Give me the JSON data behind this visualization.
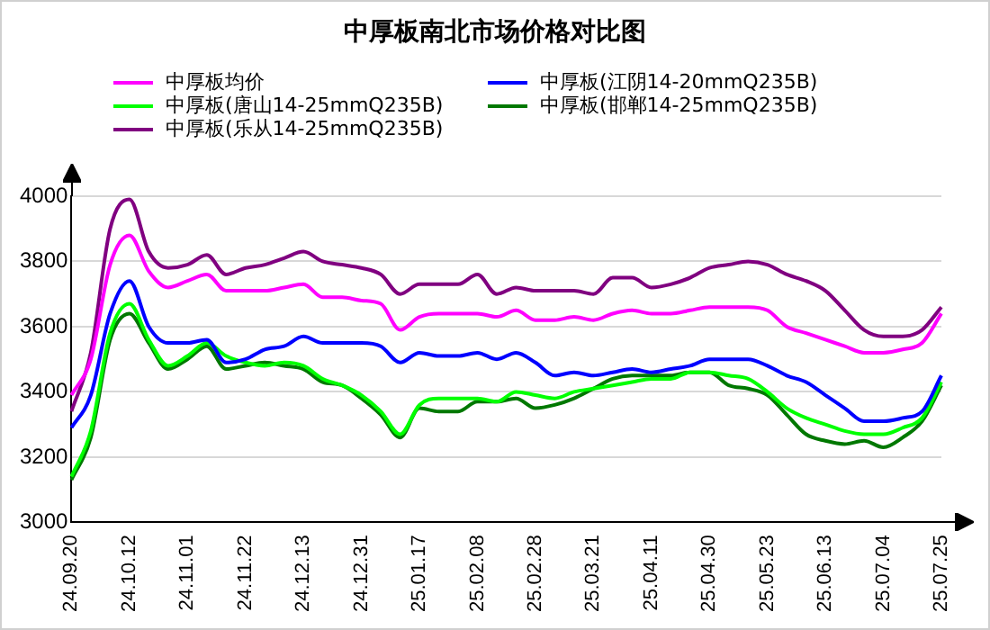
{
  "chart_data": {
    "type": "line",
    "title": "中厚板南北市场价格对比图",
    "categories": [
      "24.09.20",
      null,
      null,
      "24.10.12",
      null,
      null,
      "24.11.01",
      null,
      null,
      "24.11.22",
      null,
      null,
      "24.12.13",
      null,
      null,
      "24.12.31",
      null,
      null,
      "25.01.17",
      null,
      null,
      "25.02.08",
      null,
      null,
      "25.02.28",
      null,
      null,
      "25.03.21",
      null,
      null,
      "25.04.11",
      null,
      null,
      "25.04.30",
      null,
      null,
      "25.05.23",
      null,
      null,
      "25.06.13",
      null,
      null,
      "25.07.04",
      null,
      null,
      "25.07.25"
    ],
    "series": [
      {
        "name": "中厚板均价",
        "color": "#ff00ff",
        "values": [
          3390,
          3500,
          3790,
          3880,
          3770,
          3720,
          3740,
          3760,
          3710,
          3710,
          3710,
          3720,
          3730,
          3690,
          3690,
          3680,
          3670,
          3590,
          3630,
          3640,
          3640,
          3640,
          3630,
          3650,
          3620,
          3620,
          3630,
          3620,
          3640,
          3650,
          3640,
          3640,
          3650,
          3660,
          3660,
          3660,
          3650,
          3600,
          3580,
          3560,
          3540,
          3520,
          3520,
          3530,
          3550,
          3640
        ]
      },
      {
        "name": "中厚板(江阴14-20mmQ235B)",
        "color": "#0000ff",
        "values": [
          3290,
          3390,
          3640,
          3740,
          3600,
          3550,
          3550,
          3560,
          3490,
          3500,
          3530,
          3540,
          3570,
          3550,
          3550,
          3550,
          3540,
          3490,
          3520,
          3510,
          3510,
          3520,
          3500,
          3520,
          3490,
          3450,
          3460,
          3450,
          3460,
          3470,
          3460,
          3470,
          3480,
          3500,
          3500,
          3500,
          3480,
          3450,
          3430,
          3390,
          3350,
          3310,
          3310,
          3320,
          3340,
          3450
        ]
      },
      {
        "name": "中厚板(唐山14-25mmQ235B)",
        "color": "#00ff00",
        "values": [
          3140,
          3280,
          3580,
          3670,
          3560,
          3480,
          3510,
          3550,
          3510,
          3490,
          3480,
          3490,
          3480,
          3440,
          3420,
          3390,
          3340,
          3270,
          3360,
          3380,
          3380,
          3380,
          3370,
          3400,
          3390,
          3380,
          3400,
          3410,
          3420,
          3430,
          3440,
          3440,
          3460,
          3460,
          3450,
          3440,
          3400,
          3350,
          3320,
          3300,
          3280,
          3270,
          3270,
          3290,
          3320,
          3430
        ]
      },
      {
        "name": "中厚板(邯郸14-25mmQ235B)",
        "color": "#007800",
        "values": [
          3130,
          3260,
          3560,
          3640,
          3550,
          3470,
          3500,
          3540,
          3470,
          3480,
          3490,
          3480,
          3470,
          3430,
          3420,
          3380,
          3330,
          3260,
          3350,
          3340,
          3340,
          3370,
          3370,
          3380,
          3350,
          3360,
          3380,
          3410,
          3440,
          3450,
          3450,
          3450,
          3460,
          3460,
          3420,
          3410,
          3390,
          3330,
          3270,
          3250,
          3240,
          3250,
          3230,
          3260,
          3310,
          3420
        ]
      },
      {
        "name": "中厚板(乐从14-25mmQ235B)",
        "color": "#800080",
        "values": [
          3340,
          3520,
          3900,
          3990,
          3830,
          3780,
          3790,
          3820,
          3760,
          3780,
          3790,
          3810,
          3830,
          3800,
          3790,
          3780,
          3760,
          3700,
          3730,
          3730,
          3730,
          3760,
          3700,
          3720,
          3710,
          3710,
          3710,
          3700,
          3750,
          3750,
          3720,
          3730,
          3750,
          3780,
          3790,
          3800,
          3790,
          3760,
          3740,
          3710,
          3650,
          3590,
          3570,
          3570,
          3590,
          3660
        ]
      }
    ],
    "ylim": [
      3000,
      4000
    ],
    "yticks": [
      3000,
      3200,
      3400,
      3600,
      3800,
      4000
    ],
    "grid": "y",
    "legend": "top",
    "marker": "none",
    "line_style": "solid"
  }
}
